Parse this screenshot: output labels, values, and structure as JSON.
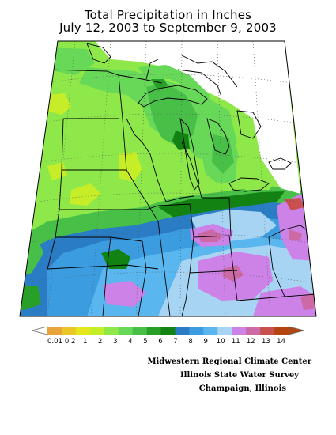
{
  "title_line1": "Total Precipitation in Inches",
  "title_line2": "July 12, 2003 to September 9, 2003",
  "legend": {
    "labels": [
      "0.01",
      "0.2",
      "1",
      "2",
      "3",
      "4",
      "5",
      "6",
      "7",
      "8",
      "9",
      "10",
      "11",
      "12",
      "13",
      "14"
    ],
    "colors": [
      "#e8a33a",
      "#eac626",
      "#e6e61c",
      "#c6ee28",
      "#8ee84a",
      "#68d858",
      "#48c048",
      "#28a028",
      "#128212",
      "#2a7cc4",
      "#3c9ce0",
      "#5ab6ee",
      "#a8d4f4",
      "#cc82e6",
      "#cc6aa6",
      "#c8504e",
      "#b44410"
    ]
  },
  "credits": {
    "line1": "Midwestern Regional Climate Center",
    "line2": "Illinois State Water Survey",
    "line3": "Champaign, Illinois"
  },
  "zone_colors": {
    "lightgreen": "#8ee84a",
    "green": "#68d858",
    "midgreen": "#48c048",
    "darkgreen": "#128212",
    "yellow": "#c6ee28",
    "blue": "#2a7cc4",
    "medblue": "#3c9ce0",
    "lightblue": "#5ab6ee",
    "paleblue": "#a8d4f4",
    "violet": "#cc82e6",
    "pink": "#cc6aa6",
    "red": "#c8504e"
  }
}
